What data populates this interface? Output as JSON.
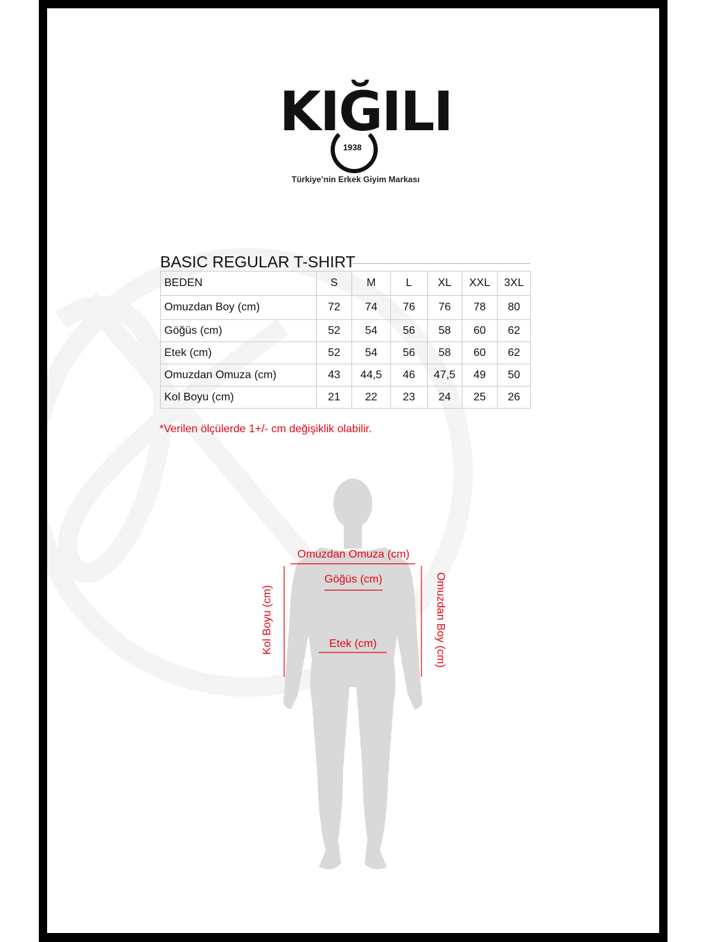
{
  "brand": {
    "name": "KIĞILI",
    "year": "1938",
    "tagline": "Türkiye’nin Erkek Giyim Markası"
  },
  "title": "BASIC REGULAR T-SHIRT",
  "table": {
    "header": [
      "BEDEN",
      "S",
      "M",
      "L",
      "XL",
      "XXL",
      "3XL"
    ],
    "rows": [
      [
        "Omuzdan Boy (cm)",
        "72",
        "74",
        "76",
        "76",
        "78",
        "80"
      ],
      [
        "Göğüs (cm)",
        "52",
        "54",
        "56",
        "58",
        "60",
        "62"
      ],
      [
        "Etek (cm)",
        "52",
        "54",
        "56",
        "58",
        "60",
        "62"
      ],
      [
        "Omuzdan Omuza (cm)",
        "43",
        "44,5",
        "46",
        "47,5",
        "49",
        "50"
      ],
      [
        "Kol Boyu (cm)",
        "21",
        "22",
        "23",
        "24",
        "25",
        "26"
      ]
    ]
  },
  "note": "*Verilen ölçülerde 1+/- cm değişiklik olabilir.",
  "figure": {
    "shoulder": "Omuzdan Omuza (cm)",
    "chest": "Göğüs (cm)",
    "hem": "Etek (cm)",
    "sleeve": "Kol Boyu (cm)",
    "length": "Omuzdan Boy (cm)"
  },
  "colors": {
    "accent": "#e30613",
    "frame": "#000000",
    "silhouette": "#d9d9d9"
  }
}
